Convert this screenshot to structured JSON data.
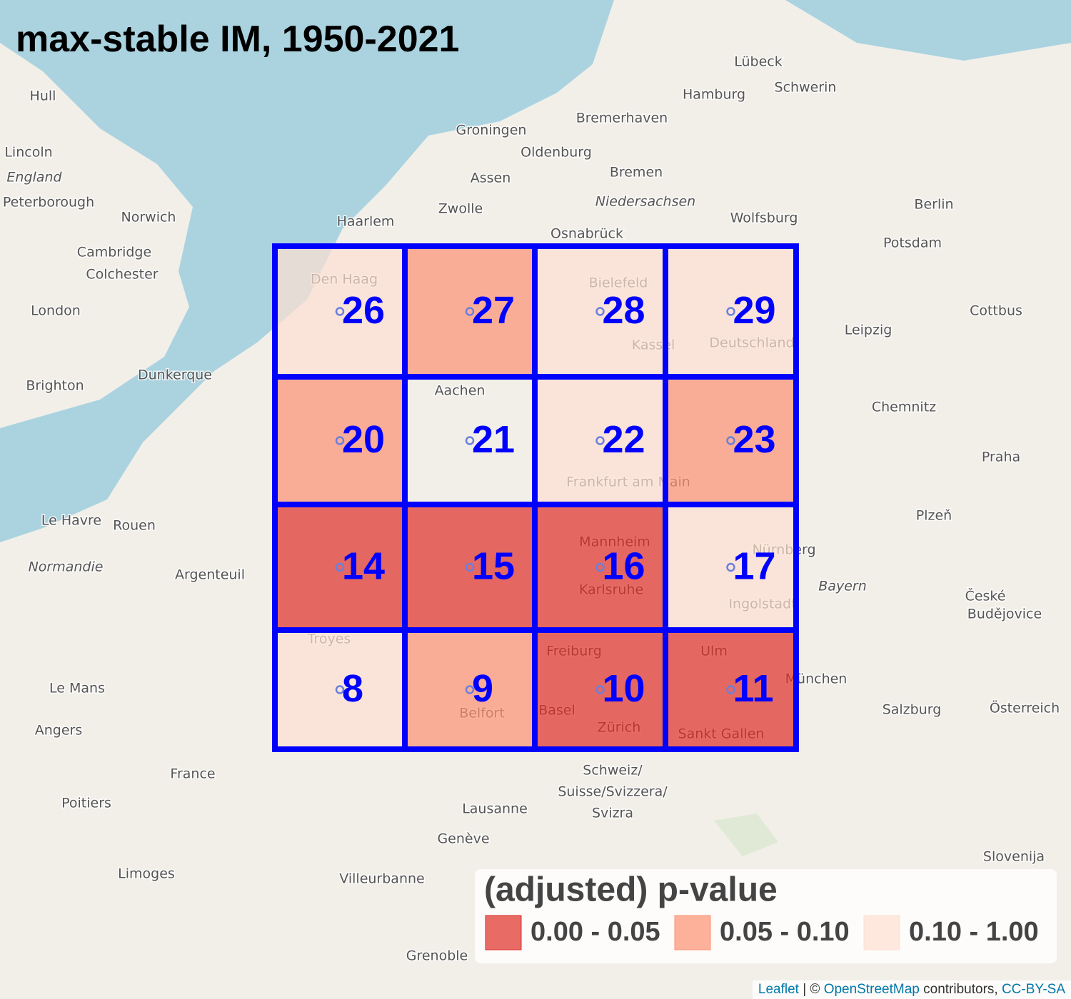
{
  "title": "max-stable IM, 1950-2021",
  "grid": {
    "rows": [
      [
        {
          "id": 26,
          "class": 2
        },
        {
          "id": 27,
          "class": 1
        },
        {
          "id": 28,
          "class": 2
        },
        {
          "id": 29,
          "class": 2
        }
      ],
      [
        {
          "id": 20,
          "class": 1
        },
        {
          "id": 21,
          "class": null
        },
        {
          "id": 22,
          "class": 2
        },
        {
          "id": 23,
          "class": 1
        }
      ],
      [
        {
          "id": 14,
          "class": 0
        },
        {
          "id": 15,
          "class": 0
        },
        {
          "id": 16,
          "class": 0
        },
        {
          "id": 17,
          "class": 2
        }
      ],
      [
        {
          "id": 8,
          "class": 2
        },
        {
          "id": 9,
          "class": 1
        },
        {
          "id": 10,
          "class": 0
        },
        {
          "id": 11,
          "class": 0
        }
      ]
    ]
  },
  "legend": {
    "title": "(adjusted) p-value",
    "entries": [
      {
        "label": "0.00 - 0.05",
        "color": "#de2d26"
      },
      {
        "label": "0.05 - 0.10",
        "color": "#fc9272"
      },
      {
        "label": "0.10 - 1.00",
        "color": "#fee0d2"
      }
    ]
  },
  "places": [
    "Hull",
    "Lincoln",
    "England",
    "Peterborough",
    "Norwich",
    "Cambridge",
    "Colchester",
    "London",
    "Brighton",
    "Dunkerque",
    "Groningen",
    "Oldenburg",
    "Assen",
    "Bremen",
    "Bremerhaven",
    "Hamburg",
    "Lübeck",
    "Schwerin",
    "Berlin",
    "Potsdam",
    "Wolfsburg",
    "Osnabrück",
    "Niedersachsen",
    "Haarlem",
    "Zwolle",
    "Leipzig",
    "Cottbus",
    "Chemnitz",
    "Praha",
    "Plzeň",
    "Le Havre",
    "Rouen",
    "Argenteuil",
    "Normandie",
    "Troyes",
    "Le Mans",
    "Angers",
    "France",
    "Poitiers",
    "Limoges",
    "Lausanne",
    "Genève",
    "Villeurbanne",
    "Grenoble",
    "München",
    "Salzburg",
    "Österreich",
    "Slovenija",
    "Schweiz/",
    "Suisse/Svizzera/",
    "Svizra",
    "Nürnberg",
    "Bayern",
    "Ingolstadt",
    "České",
    "Budějovice",
    "Den Haag",
    "Bielefeld",
    "Aachen",
    "Mannheim",
    "Karlsruhe",
    "Freiburg",
    "Basel",
    "Zürich",
    "Ulm",
    "Sankt Gallen",
    "Belfort",
    "Frankfurt am Main",
    "Kassel",
    "Deutschland"
  ],
  "attribution": {
    "leaflet": "Leaflet",
    "sep": "| ©",
    "osm": "OpenStreetMap",
    "contributors": "contributors,",
    "license": "CC-BY-SA"
  }
}
